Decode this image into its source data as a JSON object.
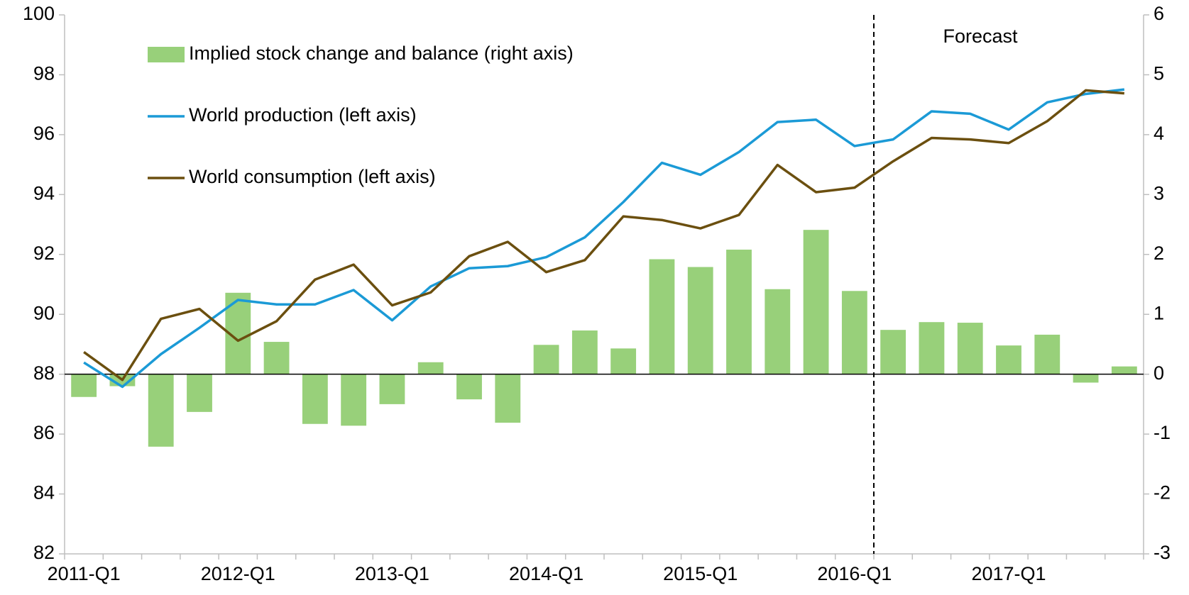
{
  "chart_data": {
    "type": "bar-line",
    "categories": [
      "2011-Q1",
      null,
      null,
      null,
      "2012-Q1",
      null,
      null,
      null,
      "2013-Q1",
      null,
      null,
      null,
      "2014-Q1",
      null,
      null,
      null,
      "2015-Q1",
      null,
      null,
      null,
      "2016-Q1",
      null,
      null,
      null,
      "2017-Q1",
      null,
      null,
      null
    ],
    "series": [
      {
        "name": "Implied stock change and balance (right axis)",
        "type": "bar",
        "axis": "y2",
        "color": "#98d07a",
        "values": [
          -0.38,
          -0.2,
          -1.21,
          -0.63,
          1.36,
          0.54,
          -0.83,
          -0.86,
          -0.5,
          0.2,
          -0.42,
          -0.81,
          0.49,
          0.73,
          0.43,
          1.92,
          1.79,
          2.08,
          1.42,
          2.41,
          1.39,
          0.74,
          0.87,
          0.86,
          0.48,
          0.66,
          -0.14,
          0.13
        ]
      },
      {
        "name": "World production (left axis)",
        "type": "line",
        "color": "#1b9ad6",
        "values": [
          88.39,
          87.58,
          88.67,
          89.55,
          90.48,
          90.33,
          90.33,
          90.81,
          89.8,
          90.93,
          91.54,
          91.61,
          91.91,
          92.57,
          93.75,
          95.06,
          94.66,
          95.42,
          96.42,
          96.5,
          95.62,
          95.84,
          96.78,
          96.7,
          96.17,
          97.08,
          97.36,
          97.51
        ]
      },
      {
        "name": "World consumption (left axis)",
        "type": "line",
        "color": "#6b4f0f",
        "values": [
          88.74,
          87.81,
          89.85,
          90.18,
          89.12,
          89.77,
          91.16,
          91.66,
          90.3,
          90.73,
          91.94,
          92.42,
          91.41,
          91.81,
          93.27,
          93.15,
          92.87,
          93.32,
          94.99,
          94.08,
          94.23,
          95.11,
          95.89,
          95.84,
          95.72,
          96.45,
          97.48,
          97.38
        ]
      }
    ],
    "ylim": [
      82,
      100
    ],
    "yticks": [
      82,
      84,
      86,
      88,
      90,
      92,
      94,
      96,
      98,
      100
    ],
    "y2lim": [
      -3,
      6
    ],
    "y2ticks": [
      -3,
      -2,
      -1,
      0,
      1,
      2,
      3,
      4,
      5,
      6
    ],
    "forecast": {
      "label": "Forecast",
      "after": "2016-Q1"
    },
    "legend": "upper left",
    "grid": false
  }
}
